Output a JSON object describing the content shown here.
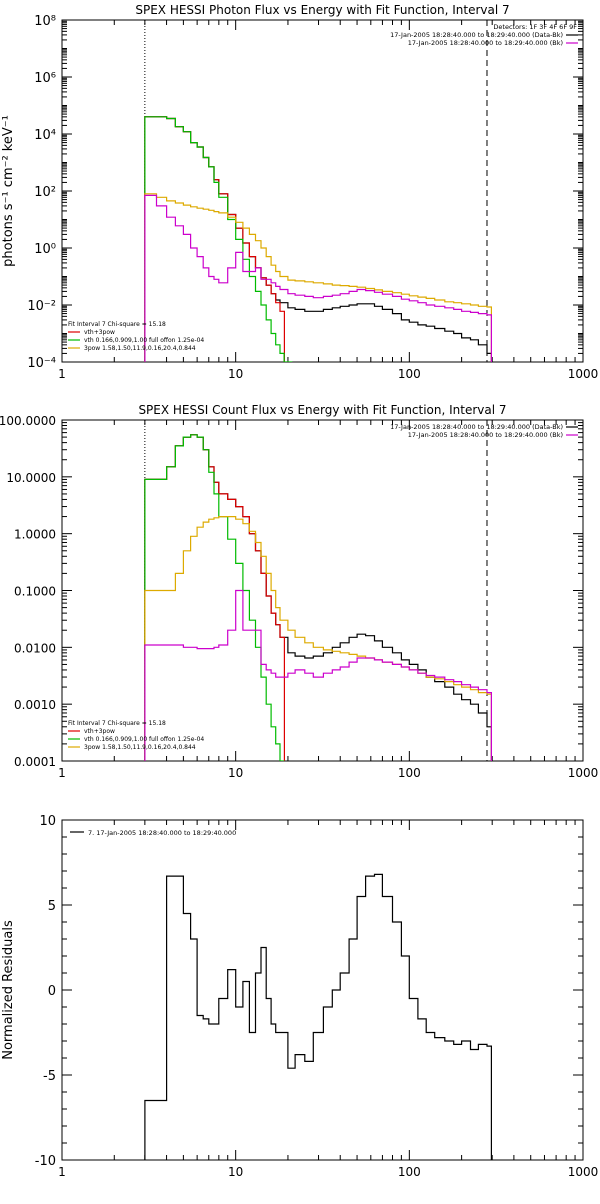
{
  "chart_data": [
    {
      "type": "line",
      "title": "SPEX HESSI Photon Flux vs Energy with Fit Function, Interval 7",
      "ylabel_html": "photons s⁻¹ cm⁻² keV⁻¹",
      "xlabel": "",
      "xscale": "log",
      "yscale": "log",
      "xlim": [
        1,
        1000
      ],
      "ylim": [
        0.0001,
        100000000
      ],
      "x_tick_labels": [
        "1",
        "10",
        "100",
        "1000"
      ],
      "y_tick_labels": [
        "10⁻⁴",
        "10⁻²",
        "10⁰",
        "10²",
        "10⁴",
        "10⁶",
        "10⁸"
      ],
      "legend_top": [
        "Detectors: 1F 3F 4F 6F 9F",
        "17-Jan-2005 18:28:40.000 to 18:29:40.000 (Data-Bk)",
        "17-Jan-2005 18:28:40.000 to 18:29:40.000 (Bk)"
      ],
      "legend_bottom": [
        "Fit Interval 7   Chi-square = 15.18",
        "vth+3pow",
        "vth 0.166,0.909,1.00  full offon 1.25e-04",
        "3pow 1.58,1.50,11.9,0.16,20.4,0.844"
      ],
      "vlines": [
        3,
        280
      ],
      "series": [
        {
          "name": "",
          "color": "#000000",
          "x": [
            3,
            3.5,
            4,
            4.5,
            5,
            5.5,
            6,
            6.5,
            7,
            7.5,
            8,
            9,
            10,
            11,
            12,
            13,
            14,
            15,
            16,
            17,
            18,
            20,
            22,
            25,
            28,
            32,
            36,
            40,
            45,
            50,
            56,
            63,
            70,
            80,
            90,
            100,
            112,
            125,
            140,
            160,
            180,
            200,
            225,
            250,
            280
          ],
          "y": [
            40000,
            40000,
            35000,
            18000,
            12000,
            5000,
            3500,
            1500,
            700,
            250,
            80,
            15,
            5,
            1.5,
            0.5,
            0.2,
            0.09,
            0.05,
            0.025,
            0.015,
            0.012,
            0.008,
            0.007,
            0.006,
            0.006,
            0.007,
            0.008,
            0.009,
            0.01,
            0.011,
            0.011,
            0.009,
            0.007,
            0.005,
            0.003,
            0.0025,
            0.002,
            0.0018,
            0.0015,
            0.0012,
            0.001,
            0.0007,
            0.0006,
            0.0004,
            0.0002
          ]
        },
        {
          "name": "",
          "color": "#dd0000",
          "x": [
            3,
            3.5,
            4,
            4.5,
            5,
            5.5,
            6,
            6.5,
            7,
            7.5,
            8,
            9,
            10,
            11,
            12,
            13,
            14,
            15,
            16,
            17,
            18
          ],
          "y": [
            40000,
            40000,
            35000,
            18000,
            12000,
            5000,
            3500,
            1500,
            700,
            250,
            80,
            15,
            5,
            1.5,
            0.5,
            0.2,
            0.09,
            0.05,
            0.025,
            0.012,
            0.006
          ]
        },
        {
          "name": "",
          "color": "#00bb00",
          "x": [
            3,
            3.5,
            4,
            4.5,
            5,
            5.5,
            6,
            6.5,
            7,
            7.5,
            8,
            9,
            10,
            11,
            12,
            13,
            14,
            15,
            16,
            17,
            18,
            19,
            20
          ],
          "y": [
            40000,
            40000,
            35000,
            18000,
            12000,
            5000,
            3500,
            1500,
            700,
            200,
            60,
            10,
            2,
            0.4,
            0.1,
            0.03,
            0.01,
            0.003,
            0.001,
            0.0004,
            0.0002,
            0.0001,
            0.0001
          ]
        },
        {
          "name": "",
          "color": "#ddaa00",
          "x": [
            3,
            3.5,
            4,
            4.5,
            5,
            5.5,
            6,
            6.5,
            7,
            7.5,
            8,
            9,
            10,
            11,
            12,
            13,
            14,
            15,
            16,
            17,
            18,
            20,
            22,
            25,
            28,
            32,
            36,
            40,
            45,
            50,
            56,
            63,
            70,
            80,
            90,
            100,
            112,
            125,
            140,
            160,
            180,
            200,
            225,
            250,
            280
          ],
          "y": [
            80,
            60,
            45,
            38,
            32,
            28,
            25,
            23,
            21,
            19,
            17,
            12,
            8,
            5,
            3,
            1.8,
            1,
            0.5,
            0.25,
            0.15,
            0.1,
            0.075,
            0.07,
            0.065,
            0.06,
            0.055,
            0.05,
            0.048,
            0.045,
            0.042,
            0.038,
            0.034,
            0.03,
            0.027,
            0.024,
            0.021,
            0.019,
            0.017,
            0.015,
            0.013,
            0.012,
            0.011,
            0.01,
            0.009,
            0.0085
          ]
        },
        {
          "name": "",
          "color": "#cc00cc",
          "x": [
            3,
            3.5,
            4,
            4.5,
            5,
            5.5,
            6,
            6.5,
            7,
            7.5,
            8,
            9,
            10,
            11,
            12,
            13,
            14,
            15,
            16,
            17,
            18,
            20,
            22,
            25,
            28,
            32,
            36,
            40,
            45,
            50,
            56,
            63,
            70,
            80,
            90,
            100,
            112,
            125,
            140,
            160,
            180,
            200,
            225,
            250,
            280
          ],
          "y": [
            70,
            30,
            12,
            6,
            3,
            1,
            0.5,
            0.2,
            0.1,
            0.08,
            0.06,
            0.2,
            0.7,
            0.15,
            0.15,
            0.2,
            0.08,
            0.08,
            0.06,
            0.045,
            0.035,
            0.025,
            0.022,
            0.02,
            0.018,
            0.02,
            0.022,
            0.025,
            0.03,
            0.035,
            0.032,
            0.028,
            0.024,
            0.02,
            0.016,
            0.014,
            0.012,
            0.01,
            0.009,
            0.008,
            0.007,
            0.006,
            0.0055,
            0.005,
            0.0045
          ]
        }
      ]
    },
    {
      "type": "line",
      "title": "SPEX HESSI Count Flux vs Energy with Fit Function, Interval 7",
      "ylabel": "",
      "xlabel": "",
      "xscale": "log",
      "yscale": "log",
      "xlim": [
        1,
        1000
      ],
      "ylim": [
        0.0001,
        100
      ],
      "x_tick_labels": [
        "1",
        "10",
        "100",
        "1000"
      ],
      "y_tick_labels": [
        "0.0001",
        "0.0010",
        "0.0100",
        "0.1000",
        "1.0000",
        "10.0000",
        "100.0000"
      ],
      "legend_top": [
        "17-Jan-2005 18:28:40.000 to 18:29:40.000 (Data-Bk)",
        "17-Jan-2005 18:28:40.000 to 18:29:40.000 (Bk)"
      ],
      "legend_bottom": [
        "Fit Interval 7   Chi-square = 15.18",
        "vth+3pow",
        "vth 0.166,0.909,1.00  full offon 1.25e-04",
        "3pow 1.58,1.50,11.9,0.16,20.4,0.844"
      ],
      "vlines": [
        3,
        280
      ],
      "series": [
        {
          "name": "",
          "color": "#000000",
          "x": [
            3,
            3.5,
            4,
            4.5,
            5,
            5.5,
            6,
            6.5,
            7,
            7.5,
            8,
            9,
            10,
            11,
            12,
            13,
            14,
            15,
            16,
            17,
            18,
            20,
            22,
            25,
            28,
            32,
            36,
            40,
            45,
            50,
            56,
            63,
            70,
            80,
            90,
            100,
            112,
            125,
            140,
            160,
            180,
            200,
            225,
            250,
            280
          ],
          "y": [
            9,
            9,
            15,
            35,
            50,
            55,
            50,
            30,
            15,
            8,
            5,
            4,
            3,
            2,
            1,
            0.5,
            0.2,
            0.08,
            0.04,
            0.025,
            0.015,
            0.008,
            0.007,
            0.0065,
            0.007,
            0.008,
            0.01,
            0.012,
            0.015,
            0.017,
            0.016,
            0.013,
            0.01,
            0.008,
            0.006,
            0.005,
            0.004,
            0.003,
            0.0025,
            0.002,
            0.0015,
            0.0012,
            0.001,
            0.0007,
            0.0004
          ]
        },
        {
          "name": "",
          "color": "#dd0000",
          "x": [
            3,
            3.5,
            4,
            4.5,
            5,
            5.5,
            6,
            6.5,
            7,
            7.5,
            8,
            9,
            10,
            11,
            12,
            13,
            14,
            15,
            16,
            17,
            18
          ],
          "y": [
            9,
            9,
            15,
            35,
            50,
            55,
            50,
            30,
            15,
            8,
            5,
            4,
            3,
            2,
            1,
            0.5,
            0.2,
            0.08,
            0.04,
            0.025,
            0.015
          ]
        },
        {
          "name": "",
          "color": "#00bb00",
          "x": [
            3,
            3.5,
            4,
            4.5,
            5,
            5.5,
            6,
            6.5,
            7,
            7.5,
            8,
            9,
            10,
            11,
            12,
            13,
            14,
            15,
            16,
            17,
            18
          ],
          "y": [
            9,
            9,
            15,
            35,
            50,
            55,
            50,
            30,
            12,
            5,
            2,
            0.8,
            0.3,
            0.1,
            0.03,
            0.01,
            0.003,
            0.001,
            0.0004,
            0.0002,
            0.0001
          ]
        },
        {
          "name": "",
          "color": "#ddaa00",
          "x": [
            3,
            3.5,
            4,
            4.5,
            5,
            5.5,
            6,
            6.5,
            7,
            7.5,
            8,
            9,
            10,
            11,
            12,
            13,
            14,
            15,
            16,
            17,
            18,
            20,
            22,
            25,
            28,
            32,
            36,
            40,
            45,
            50,
            56,
            63,
            70,
            80,
            90,
            100,
            112,
            125,
            140,
            160,
            180,
            200,
            225,
            250,
            280
          ],
          "y": [
            0.1,
            0.1,
            0.1,
            0.2,
            0.5,
            0.9,
            1.3,
            1.6,
            1.8,
            1.9,
            2,
            2,
            1.8,
            1.5,
            1.1,
            0.7,
            0.4,
            0.2,
            0.1,
            0.05,
            0.03,
            0.02,
            0.015,
            0.012,
            0.01,
            0.009,
            0.0085,
            0.008,
            0.0075,
            0.007,
            0.0065,
            0.006,
            0.0055,
            0.005,
            0.0045,
            0.004,
            0.0035,
            0.003,
            0.0028,
            0.0025,
            0.0022,
            0.002,
            0.0018,
            0.0016,
            0.0015
          ]
        },
        {
          "name": "",
          "color": "#cc00cc",
          "x": [
            3,
            3.5,
            4,
            4.5,
            5,
            5.5,
            6,
            6.5,
            7,
            7.5,
            8,
            9,
            10,
            11,
            12,
            13,
            14,
            15,
            16,
            17,
            18,
            20,
            22,
            25,
            28,
            32,
            36,
            40,
            45,
            50,
            56,
            63,
            70,
            80,
            90,
            100,
            112,
            125,
            140,
            160,
            180,
            200,
            225,
            250,
            280
          ],
          "y": [
            0.011,
            0.011,
            0.011,
            0.011,
            0.01,
            0.01,
            0.0095,
            0.0095,
            0.0095,
            0.01,
            0.011,
            0.02,
            0.1,
            0.02,
            0.02,
            0.02,
            0.005,
            0.004,
            0.0035,
            0.003,
            0.003,
            0.0035,
            0.004,
            0.0035,
            0.003,
            0.0035,
            0.004,
            0.0045,
            0.0055,
            0.0065,
            0.0065,
            0.006,
            0.0055,
            0.005,
            0.0045,
            0.004,
            0.0035,
            0.0032,
            0.003,
            0.0027,
            0.0025,
            0.0022,
            0.002,
            0.0018,
            0.0016
          ]
        }
      ]
    },
    {
      "type": "line",
      "title": "",
      "ylabel": "Normalized Residuals",
      "xlabel": "",
      "xscale": "log",
      "yscale": "linear",
      "xlim": [
        1,
        1000
      ],
      "ylim": [
        -10,
        10
      ],
      "x_tick_labels": [
        "1",
        "10",
        "100",
        "1000"
      ],
      "y_tick_labels": [
        "-10",
        "-5",
        "0",
        "5",
        "10"
      ],
      "legend_top": [
        "7. 17-Jan-2005 18:28:40.000 to 18:29:40.000"
      ],
      "series": [
        {
          "name": "7. 17-Jan-2005 18:28:40.000 to 18:29:40.000",
          "color": "#000000",
          "x": [
            3,
            3.5,
            4,
            4.5,
            5,
            5.5,
            6,
            6.5,
            7,
            7.5,
            8,
            9,
            10,
            11,
            12,
            13,
            14,
            15,
            16,
            17,
            18,
            20,
            22,
            25,
            28,
            32,
            36,
            40,
            45,
            50,
            56,
            63,
            70,
            80,
            90,
            100,
            112,
            125,
            140,
            160,
            180,
            200,
            225,
            250,
            280
          ],
          "y": [
            -6.5,
            -6.5,
            6.7,
            6.7,
            4.5,
            3,
            -1.5,
            -1.7,
            -2,
            -2,
            -0.5,
            1.2,
            -1,
            0.5,
            -2.5,
            1,
            2.5,
            -0.5,
            -2,
            -2.5,
            -2.5,
            -4.6,
            -3.8,
            -4.2,
            -2.5,
            -1,
            0,
            1,
            3,
            5.5,
            6.7,
            6.8,
            5.5,
            4,
            2,
            -0.5,
            -1.7,
            -2.5,
            -2.8,
            -3,
            -3.2,
            -3,
            -3.5,
            -3.2,
            -3.3
          ]
        }
      ]
    }
  ]
}
